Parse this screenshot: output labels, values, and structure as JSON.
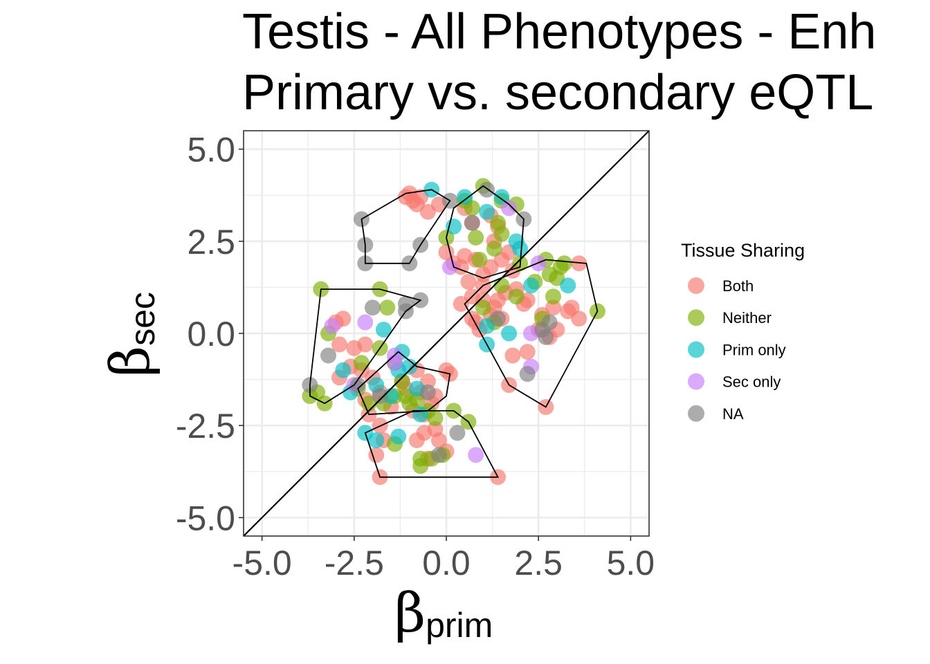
{
  "chart_data": {
    "type": "scatter",
    "title_lines": [
      "Testis - All Phenotypes - Enh",
      "Primary vs. secondary eQTL"
    ],
    "xlabel": {
      "symbol": "β",
      "subscript": "prim"
    },
    "ylabel": {
      "symbol": "β",
      "subscript": "sec"
    },
    "xlim": [
      -5.5,
      5.5
    ],
    "ylim": [
      -5.5,
      5.5
    ],
    "xticks": [
      -5.0,
      -2.5,
      0.0,
      2.5,
      5.0
    ],
    "yticks": [
      -5.0,
      -2.5,
      0.0,
      2.5,
      5.0
    ],
    "xtick_labels": [
      "-5.0",
      "-2.5",
      "0.0",
      "2.5",
      "5.0"
    ],
    "ytick_labels": [
      "-5.0",
      "-2.5",
      "0.0",
      "2.5",
      "5.0"
    ],
    "grid": true,
    "reference_line": "y = x",
    "legend": {
      "title": "Tissue Sharing",
      "placement": "right",
      "entries": [
        {
          "name": "Both",
          "color": "#F8766D"
        },
        {
          "name": "Neither",
          "color": "#7CAE00"
        },
        {
          "name": "Prim only",
          "color": "#00BFC4"
        },
        {
          "name": "Sec only",
          "color": "#C77CFF"
        },
        {
          "name": "NA",
          "color": "#7F7F7F"
        }
      ]
    },
    "series": [
      {
        "name": "Both",
        "color": "#F8766D",
        "points": [
          [
            -1.0,
            3.8
          ],
          [
            -0.9,
            3.6
          ],
          [
            -0.8,
            3.5
          ],
          [
            -0.5,
            3.3
          ],
          [
            -0.7,
            3.7
          ],
          [
            -1.1,
            3.7
          ],
          [
            -0.2,
            3.5
          ],
          [
            0.5,
            3.4
          ],
          [
            0.7,
            3.0
          ],
          [
            1.2,
            3.2
          ],
          [
            1.4,
            2.9
          ],
          [
            0.0,
            2.2
          ],
          [
            0.2,
            1.9
          ],
          [
            0.5,
            2.1
          ],
          [
            0.8,
            2.0
          ],
          [
            1.3,
            2.5
          ],
          [
            1.5,
            2.0
          ],
          [
            1.7,
            2.2
          ],
          [
            1.0,
            1.6
          ],
          [
            0.6,
            1.4
          ],
          [
            0.4,
            1.8
          ],
          [
            1.2,
            1.8
          ],
          [
            1.8,
            1.7
          ],
          [
            0.4,
            0.8
          ],
          [
            0.7,
            1.0
          ],
          [
            1.0,
            0.9
          ],
          [
            1.3,
            0.7
          ],
          [
            1.6,
            1.1
          ],
          [
            1.9,
            1.2
          ],
          [
            2.2,
            0.9
          ],
          [
            0.8,
            0.3
          ],
          [
            1.2,
            0.5
          ],
          [
            1.5,
            0.4
          ],
          [
            1.8,
            -0.6
          ],
          [
            2.2,
            -0.5
          ],
          [
            0.9,
            0.1
          ],
          [
            0.7,
            0.4
          ],
          [
            2.6,
            0.5
          ],
          [
            2.9,
            0.7
          ],
          [
            3.0,
            0.1
          ],
          [
            2.8,
            -0.1
          ],
          [
            3.4,
            0.7
          ],
          [
            3.6,
            0.4
          ],
          [
            3.6,
            1.9
          ],
          [
            3.3,
            0.6
          ],
          [
            2.1,
            0.8
          ],
          [
            1.4,
            0.9
          ],
          [
            2.7,
            -2.0
          ],
          [
            1.7,
            -1.4
          ],
          [
            1.0,
            1.3
          ],
          [
            2.5,
            0.1
          ],
          [
            -3.0,
            0.3
          ],
          [
            -2.9,
            -0.3
          ],
          [
            -2.5,
            -0.4
          ],
          [
            -2.2,
            -0.3
          ],
          [
            -2.8,
            0.4
          ],
          [
            -2.3,
            -1.0
          ],
          [
            -2.0,
            -1.2
          ],
          [
            -1.8,
            -1.6
          ],
          [
            -1.2,
            -1.3
          ],
          [
            -0.8,
            -1.0
          ],
          [
            -0.5,
            -1.3
          ],
          [
            -0.3,
            -1.7
          ],
          [
            0.0,
            -1.0
          ],
          [
            -0.9,
            -2.1
          ],
          [
            -0.6,
            -2.2
          ],
          [
            -0.4,
            -1.9
          ],
          [
            -1.5,
            -2.0
          ],
          [
            -2.2,
            -1.8
          ],
          [
            -2.9,
            -1.2
          ],
          [
            -2.1,
            -2.2
          ],
          [
            -1.8,
            -2.5
          ],
          [
            -1.7,
            -2.9
          ],
          [
            -1.9,
            -3.3
          ],
          [
            -0.6,
            -2.7
          ],
          [
            -0.2,
            -2.9
          ],
          [
            -0.3,
            -2.6
          ],
          [
            0.0,
            -3.2
          ],
          [
            -0.5,
            -3.4
          ],
          [
            1.4,
            -3.9
          ],
          [
            -1.8,
            -3.9
          ],
          [
            -0.8,
            -2.9
          ],
          [
            0.1,
            -1.1
          ],
          [
            -1.1,
            -1.5
          ],
          [
            -0.7,
            -1.6
          ],
          [
            -2.6,
            -0.9
          ]
        ]
      },
      {
        "name": "Neither",
        "color": "#7CAE00",
        "points": [
          [
            0.5,
            3.6
          ],
          [
            0.7,
            3.4
          ],
          [
            1.0,
            4.0
          ],
          [
            1.5,
            3.6
          ],
          [
            1.9,
            3.5
          ],
          [
            1.4,
            3.0
          ],
          [
            0.8,
            2.6
          ],
          [
            1.3,
            2.3
          ],
          [
            0.9,
            2.0
          ],
          [
            1.5,
            2.7
          ],
          [
            0.0,
            2.6
          ],
          [
            2.0,
            1.9
          ],
          [
            1.5,
            1.3
          ],
          [
            2.4,
            1.4
          ],
          [
            2.8,
            1.6
          ],
          [
            3.0,
            1.5
          ],
          [
            3.1,
            1.8
          ],
          [
            3.2,
            1.9
          ],
          [
            2.9,
            1.0
          ],
          [
            4.1,
            0.6
          ],
          [
            2.6,
            0.4
          ],
          [
            1.0,
            0.7
          ],
          [
            1.3,
            0.3
          ],
          [
            2.7,
            2.0
          ],
          [
            1.9,
            1.0
          ],
          [
            -3.4,
            1.2
          ],
          [
            -1.8,
            1.2
          ],
          [
            -1.6,
            0.7
          ],
          [
            -3.2,
            0.0
          ],
          [
            -2.3,
            -0.8
          ],
          [
            -1.8,
            -0.4
          ],
          [
            -1.4,
            -0.8
          ],
          [
            -1.2,
            -1.3
          ],
          [
            -1.1,
            -1.7
          ],
          [
            -1.0,
            -1.9
          ],
          [
            -1.4,
            -1.7
          ],
          [
            -1.7,
            -1.9
          ],
          [
            -2.1,
            -1.9
          ],
          [
            -2.4,
            -1.5
          ],
          [
            -3.7,
            -1.7
          ],
          [
            -3.3,
            -1.9
          ],
          [
            -3.5,
            -1.6
          ],
          [
            -0.5,
            -2.1
          ],
          [
            0.2,
            -2.1
          ],
          [
            -0.3,
            -2.3
          ],
          [
            0.6,
            -2.4
          ],
          [
            -1.4,
            -3.0
          ],
          [
            -0.7,
            -3.4
          ],
          [
            -0.7,
            -3.6
          ],
          [
            -0.4,
            -3.4
          ],
          [
            -0.1,
            -3.3
          ],
          [
            -0.8,
            -1.8
          ]
        ]
      },
      {
        "name": "Prim only",
        "color": "#00BFC4",
        "points": [
          [
            -0.4,
            3.9
          ],
          [
            0.5,
            3.7
          ],
          [
            1.5,
            3.7
          ],
          [
            1.1,
            3.3
          ],
          [
            0.2,
            2.9
          ],
          [
            1.9,
            2.5
          ],
          [
            2.0,
            2.3
          ],
          [
            2.3,
            1.3
          ],
          [
            3.3,
            1.3
          ],
          [
            1.7,
            0.0
          ],
          [
            1.1,
            0.2
          ],
          [
            1.1,
            -0.3
          ],
          [
            -1.7,
            0.1
          ],
          [
            -1.2,
            -0.5
          ],
          [
            -1.0,
            -0.9
          ],
          [
            -1.3,
            -1.0
          ],
          [
            -2.8,
            -1.0
          ],
          [
            -2.6,
            -1.6
          ],
          [
            -1.9,
            -1.4
          ],
          [
            -1.5,
            -1.7
          ],
          [
            -2.2,
            -2.7
          ],
          [
            -1.9,
            -2.9
          ],
          [
            -1.3,
            -2.8
          ],
          [
            -0.7,
            -2.2
          ],
          [
            -0.8,
            -1.5
          ]
        ]
      },
      {
        "name": "Sec only",
        "color": "#C77CFF",
        "points": [
          [
            1.7,
            3.4
          ],
          [
            0.1,
            1.8
          ],
          [
            2.3,
            0.0
          ],
          [
            2.3,
            -0.9
          ],
          [
            2.5,
            1.9
          ],
          [
            -3.1,
            0.2
          ],
          [
            -2.2,
            0.3
          ],
          [
            -1.4,
            -0.8
          ],
          [
            -1.4,
            -0.6
          ],
          [
            -2.5,
            -1.4
          ],
          [
            0.8,
            -3.3
          ]
        ]
      },
      {
        "name": "NA",
        "color": "#7F7F7F",
        "points": [
          [
            -2.3,
            3.1
          ],
          [
            -2.2,
            2.4
          ],
          [
            -2.2,
            1.9
          ],
          [
            -1.0,
            1.9
          ],
          [
            -0.7,
            2.4
          ],
          [
            -0.7,
            0.9
          ],
          [
            -1.1,
            0.8
          ],
          [
            -1.1,
            0.6
          ],
          [
            -2.0,
            0.7
          ],
          [
            0.1,
            3.6
          ],
          [
            0.7,
            3.0
          ],
          [
            1.1,
            3.9
          ],
          [
            2.1,
            3.1
          ],
          [
            1.4,
            0.4
          ],
          [
            2.8,
            0.3
          ],
          [
            2.6,
            0.1
          ],
          [
            2.7,
            -0.1
          ],
          [
            2.2,
            -1.1
          ],
          [
            -3.2,
            -0.6
          ],
          [
            -3.7,
            -1.4
          ],
          [
            -2.4,
            -1.4
          ],
          [
            -1.8,
            -1.7
          ],
          [
            -0.5,
            -1.6
          ],
          [
            0.3,
            -2.7
          ],
          [
            -0.2,
            -3.3
          ]
        ]
      }
    ],
    "hulls": [
      [
        [
          -2.3,
          3.1
        ],
        [
          -1.1,
          3.8
        ],
        [
          -0.4,
          3.9
        ],
        [
          0.1,
          3.6
        ],
        [
          -0.7,
          2.4
        ],
        [
          -1.0,
          1.9
        ],
        [
          -2.2,
          1.9
        ],
        [
          -2.2,
          2.4
        ]
      ],
      [
        [
          1.0,
          4.0
        ],
        [
          1.7,
          3.5
        ],
        [
          2.1,
          3.1
        ],
        [
          2.0,
          1.8
        ],
        [
          1.0,
          1.5
        ],
        [
          0.2,
          1.8
        ],
        [
          0.0,
          2.6
        ],
        [
          0.2,
          3.4
        ]
      ],
      [
        [
          0.5,
          0.8
        ],
        [
          1.0,
          1.3
        ],
        [
          2.7,
          2.0
        ],
        [
          3.8,
          1.9
        ],
        [
          4.1,
          0.6
        ],
        [
          2.7,
          -2.0
        ],
        [
          1.7,
          -1.4
        ],
        [
          1.1,
          -0.3
        ]
      ],
      [
        [
          -3.4,
          1.2
        ],
        [
          -1.8,
          1.2
        ],
        [
          -0.7,
          0.9
        ],
        [
          -1.1,
          0.6
        ],
        [
          -2.5,
          -1.4
        ],
        [
          -3.3,
          -1.9
        ],
        [
          -3.7,
          -1.7
        ],
        [
          -3.7,
          -1.4
        ]
      ],
      [
        [
          -1.3,
          -0.5
        ],
        [
          -0.8,
          -0.9
        ],
        [
          0.1,
          -1.1
        ],
        [
          0.0,
          -1.7
        ],
        [
          -0.5,
          -2.1
        ],
        [
          -2.1,
          -2.2
        ],
        [
          -2.4,
          -1.5
        ]
      ],
      [
        [
          -2.2,
          -2.7
        ],
        [
          -1.8,
          -3.9
        ],
        [
          1.4,
          -3.9
        ],
        [
          0.6,
          -2.4
        ],
        [
          0.2,
          -2.1
        ],
        [
          -0.9,
          -2.1
        ]
      ]
    ]
  }
}
